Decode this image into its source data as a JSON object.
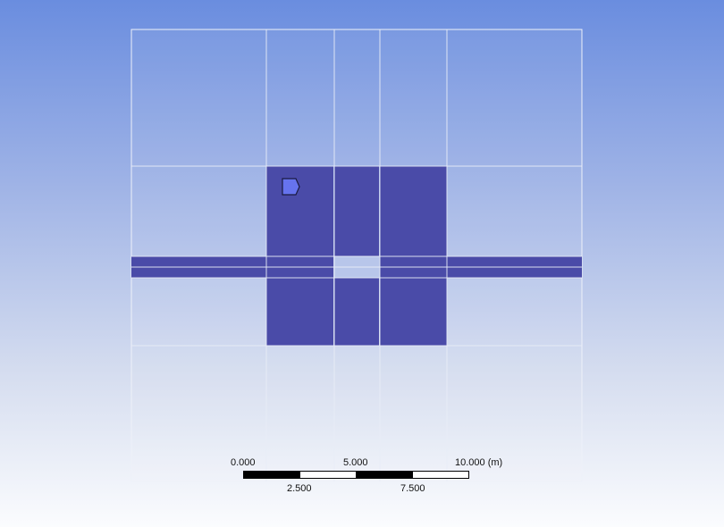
{
  "viewer": {
    "background_top": "#6a8ddf",
    "background_bottom": "#fbfcfe",
    "body_fill_color": "#4a4ba8",
    "grid_line_color": "#e8ecf6"
  },
  "scale_bar": {
    "labels_top": [
      "0.000",
      "5.000",
      "10.000 (m)"
    ],
    "labels_bottom": [
      "2.500",
      "7.500"
    ]
  },
  "marker": {
    "icon": "face-selection-icon",
    "color": "#6673ee"
  }
}
